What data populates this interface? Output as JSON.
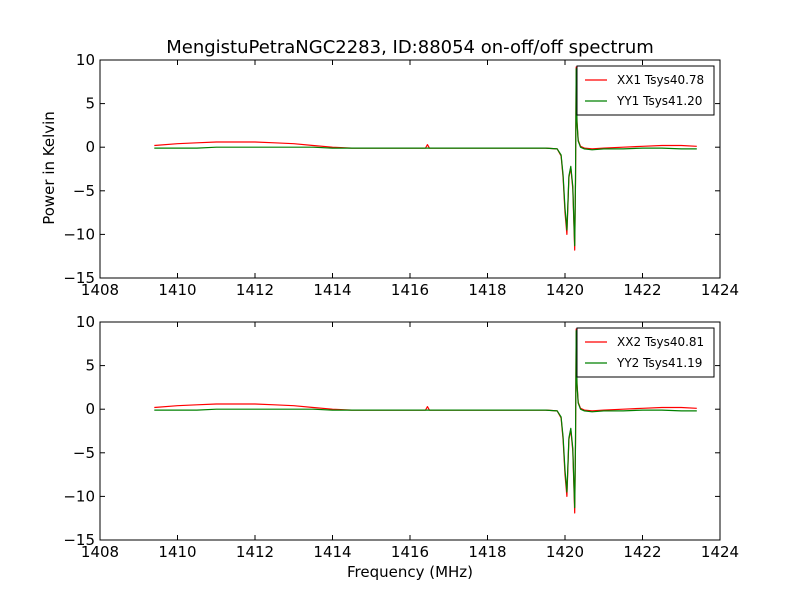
{
  "chart_data": {
    "type": "line",
    "title": "MengistuPetraNGC2283, ID:88054 on-off/off spectrum",
    "xlabel": "Frequency (MHz)",
    "ylabel": "Power in Kelvin",
    "xlim": [
      1408,
      1424
    ],
    "ylim": [
      -15,
      10
    ],
    "xticks": [
      "1408",
      "1410",
      "1412",
      "1414",
      "1416",
      "1418",
      "1420",
      "1422",
      "1424"
    ],
    "yticks": [
      "−15",
      "−10",
      "−5",
      "0",
      "5",
      "10"
    ],
    "grid": false,
    "legend_position": "top-right",
    "panels": [
      {
        "series": [
          {
            "name": "XX1 Tsys40.78",
            "color": "#ff0000",
            "x": [
              1409.4,
              1410.0,
              1410.5,
              1411.0,
              1411.5,
              1412.0,
              1412.5,
              1413.0,
              1413.5,
              1414.0,
              1414.5,
              1415.0,
              1415.5,
              1416.0,
              1416.4,
              1416.45,
              1416.5,
              1417.0,
              1417.5,
              1418.0,
              1418.5,
              1419.0,
              1419.5,
              1419.8,
              1419.9,
              1419.95,
              1420.0,
              1420.05,
              1420.1,
              1420.15,
              1420.2,
              1420.25,
              1420.27,
              1420.29,
              1420.31,
              1420.34,
              1420.4,
              1420.5,
              1420.7,
              1421.0,
              1421.5,
              1422.0,
              1422.5,
              1423.0,
              1423.4
            ],
            "y": [
              0.2,
              0.4,
              0.5,
              0.6,
              0.6,
              0.6,
              0.5,
              0.4,
              0.2,
              0.0,
              -0.1,
              -0.1,
              -0.1,
              -0.1,
              -0.1,
              0.3,
              -0.1,
              -0.1,
              -0.1,
              -0.1,
              -0.1,
              -0.1,
              -0.1,
              -0.2,
              -1.0,
              -3.5,
              -7.5,
              -10.0,
              -3.5,
              -2.3,
              -4.8,
              -11.8,
              -4.0,
              9.2,
              3.0,
              0.8,
              0.1,
              -0.1,
              -0.2,
              -0.1,
              0.0,
              0.1,
              0.2,
              0.2,
              0.1
            ]
          },
          {
            "name": "YY1 Tsys41.20",
            "color": "#008000",
            "x": [
              1409.4,
              1410.0,
              1410.5,
              1411.0,
              1411.5,
              1412.0,
              1412.5,
              1413.0,
              1413.5,
              1414.0,
              1414.5,
              1415.0,
              1415.5,
              1416.0,
              1416.5,
              1417.0,
              1417.5,
              1418.0,
              1418.5,
              1419.0,
              1419.5,
              1419.8,
              1419.9,
              1419.95,
              1420.0,
              1420.05,
              1420.1,
              1420.15,
              1420.2,
              1420.25,
              1420.27,
              1420.29,
              1420.31,
              1420.34,
              1420.4,
              1420.5,
              1420.7,
              1421.0,
              1421.5,
              1422.0,
              1422.5,
              1423.0,
              1423.4
            ],
            "y": [
              -0.1,
              -0.1,
              -0.1,
              0.0,
              0.0,
              0.0,
              0.0,
              0.0,
              0.0,
              -0.1,
              -0.1,
              -0.1,
              -0.1,
              -0.1,
              -0.1,
              -0.1,
              -0.1,
              -0.1,
              -0.1,
              -0.1,
              -0.1,
              -0.2,
              -0.9,
              -3.2,
              -7.0,
              -9.5,
              -3.3,
              -2.2,
              -4.5,
              -11.3,
              -3.8,
              9.0,
              2.8,
              0.7,
              0.0,
              -0.2,
              -0.3,
              -0.2,
              -0.2,
              -0.1,
              -0.1,
              -0.2,
              -0.2
            ]
          }
        ]
      },
      {
        "series": [
          {
            "name": "XX2 Tsys40.81",
            "color": "#ff0000",
            "x": [
              1409.4,
              1410.0,
              1410.5,
              1411.0,
              1411.5,
              1412.0,
              1412.5,
              1413.0,
              1413.5,
              1414.0,
              1414.5,
              1415.0,
              1415.5,
              1416.0,
              1416.4,
              1416.45,
              1416.5,
              1417.0,
              1417.5,
              1418.0,
              1418.5,
              1419.0,
              1419.5,
              1419.8,
              1419.9,
              1419.95,
              1420.0,
              1420.05,
              1420.1,
              1420.15,
              1420.2,
              1420.25,
              1420.27,
              1420.29,
              1420.31,
              1420.34,
              1420.4,
              1420.5,
              1420.7,
              1421.0,
              1421.5,
              1422.0,
              1422.5,
              1423.0,
              1423.4
            ],
            "y": [
              0.2,
              0.4,
              0.5,
              0.6,
              0.6,
              0.6,
              0.5,
              0.4,
              0.2,
              0.0,
              -0.1,
              -0.1,
              -0.1,
              -0.1,
              -0.1,
              0.3,
              -0.1,
              -0.1,
              -0.1,
              -0.1,
              -0.1,
              -0.1,
              -0.1,
              -0.2,
              -1.0,
              -3.5,
              -7.5,
              -10.0,
              -3.5,
              -2.3,
              -4.8,
              -11.9,
              -4.0,
              9.2,
              3.0,
              0.8,
              0.1,
              -0.1,
              -0.2,
              -0.1,
              0.0,
              0.1,
              0.2,
              0.2,
              0.1
            ]
          },
          {
            "name": "YY2 Tsys41.19",
            "color": "#008000",
            "x": [
              1409.4,
              1410.0,
              1410.5,
              1411.0,
              1411.5,
              1412.0,
              1412.5,
              1413.0,
              1413.5,
              1414.0,
              1414.5,
              1415.0,
              1415.5,
              1416.0,
              1416.5,
              1417.0,
              1417.5,
              1418.0,
              1418.5,
              1419.0,
              1419.5,
              1419.8,
              1419.9,
              1419.95,
              1420.0,
              1420.05,
              1420.1,
              1420.15,
              1420.2,
              1420.25,
              1420.27,
              1420.29,
              1420.31,
              1420.34,
              1420.4,
              1420.5,
              1420.7,
              1421.0,
              1421.5,
              1422.0,
              1422.5,
              1423.0,
              1423.4
            ],
            "y": [
              -0.1,
              -0.1,
              -0.1,
              0.0,
              0.0,
              0.0,
              0.0,
              0.0,
              0.0,
              -0.1,
              -0.1,
              -0.1,
              -0.1,
              -0.1,
              -0.1,
              -0.1,
              -0.1,
              -0.1,
              -0.1,
              -0.1,
              -0.1,
              -0.2,
              -0.9,
              -3.2,
              -7.0,
              -9.5,
              -3.3,
              -2.2,
              -4.5,
              -11.3,
              -3.8,
              9.0,
              2.8,
              0.7,
              0.0,
              -0.2,
              -0.3,
              -0.2,
              -0.2,
              -0.1,
              -0.1,
              -0.2,
              -0.2
            ]
          }
        ]
      }
    ]
  }
}
